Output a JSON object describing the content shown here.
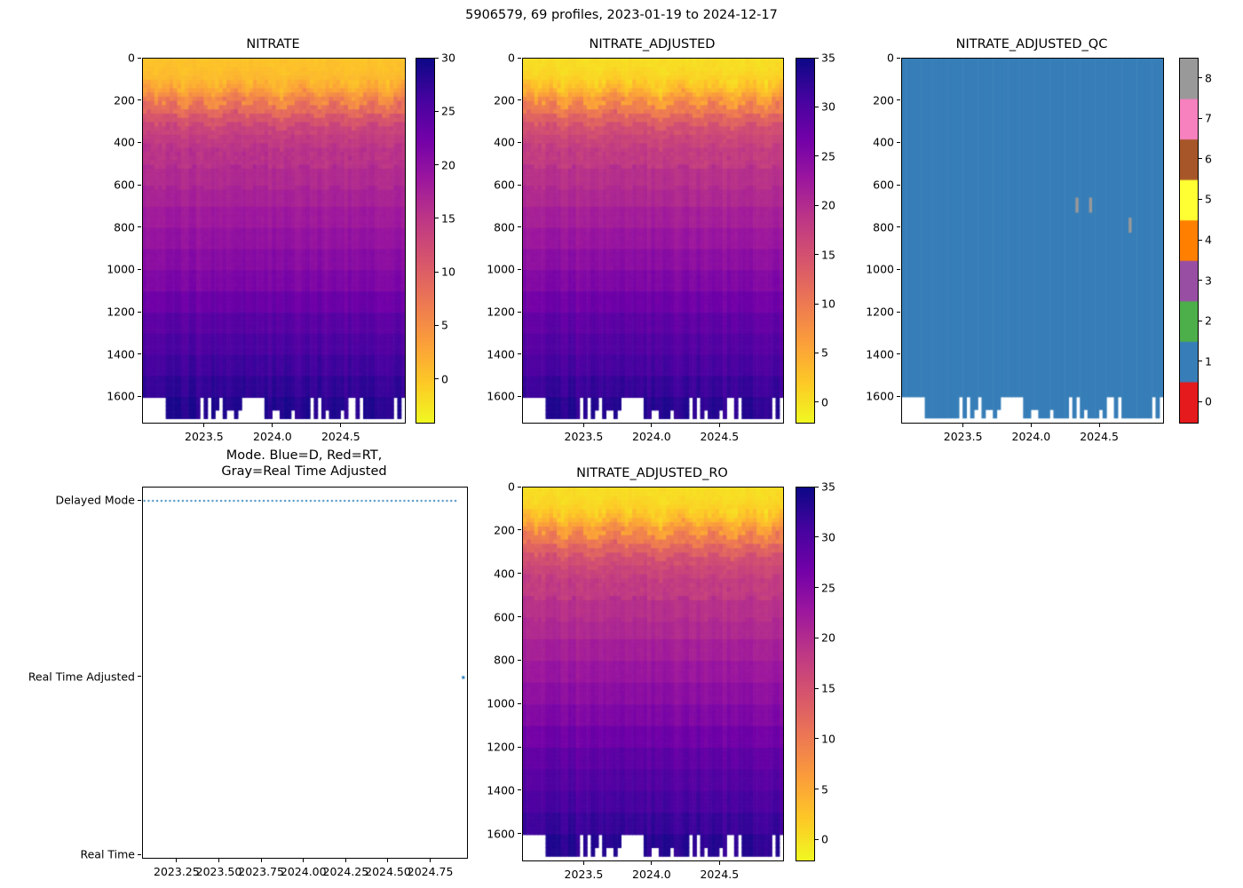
{
  "figure": {
    "suptitle": "5906579, 69 profiles, 2023-01-19 to 2024-12-17",
    "background": "#ffffff",
    "text_color": "#000000"
  },
  "colormap": {
    "name": "plasma_reversed",
    "stops": [
      [
        0.0,
        "#f0f921"
      ],
      [
        0.11,
        "#fdca26"
      ],
      [
        0.22,
        "#fb9f3a"
      ],
      [
        0.33,
        "#ed7953"
      ],
      [
        0.44,
        "#d8576b"
      ],
      [
        0.56,
        "#bd3786"
      ],
      [
        0.67,
        "#9c179e"
      ],
      [
        0.78,
        "#7201a8"
      ],
      [
        0.89,
        "#46039f"
      ],
      [
        1.0,
        "#0d0887"
      ]
    ]
  },
  "profiles": {
    "count": 69,
    "t_start": 2023.05,
    "t_end": 2024.955,
    "deep_gap_top_depth": 1600,
    "deep_gap_indices": [
      0,
      1,
      2,
      3,
      4,
      5,
      15,
      17,
      20,
      26,
      27,
      28,
      29,
      30,
      31,
      44,
      46,
      54,
      55,
      57,
      66,
      68
    ],
    "mld": [
      150,
      140,
      160,
      175,
      155,
      165,
      150,
      145,
      160,
      180,
      200,
      190,
      170,
      155,
      150,
      160,
      175,
      190,
      210,
      195,
      180,
      165,
      150,
      140,
      135,
      150,
      165,
      180,
      170,
      160,
      150,
      145,
      155,
      170,
      185,
      200,
      215,
      200,
      185,
      170,
      160,
      150,
      145,
      155,
      165,
      180,
      195,
      185,
      170,
      160,
      150,
      155,
      165,
      175,
      190,
      205,
      195,
      180,
      165,
      155,
      150,
      160,
      170,
      180,
      190,
      175,
      160,
      150,
      145
    ]
  },
  "chart_data": [
    {
      "id": "nitrate",
      "type": "heatmap",
      "title": "NITRATE",
      "xlim": [
        2023.046,
        2024.962
      ],
      "ylim": [
        0,
        1720
      ],
      "x_tick_values": [
        2023.5,
        2024.0,
        2024.5
      ],
      "x_tick_labels": [
        "2023.5",
        "2024.0",
        "2024.5"
      ],
      "y_tick_values": [
        0,
        200,
        400,
        600,
        800,
        1000,
        1200,
        1400,
        1600
      ],
      "vmin": -4,
      "vmax": 30,
      "colorbar_ticks": [
        0,
        5,
        10,
        15,
        20,
        25,
        30
      ],
      "profile_depths": [
        0,
        40,
        80,
        120,
        160,
        220,
        300,
        400,
        500,
        600,
        800,
        1000,
        1100,
        1200,
        1300,
        1400,
        1600,
        1720
      ],
      "profile_values": [
        0.5,
        0.8,
        1.5,
        3,
        6,
        10,
        13.5,
        15.5,
        16.5,
        17.5,
        19.5,
        21.5,
        23,
        24.5,
        25.5,
        26.5,
        28.5,
        29.5
      ]
    },
    {
      "id": "nitrate_adjusted",
      "type": "heatmap",
      "title": "NITRATE_ADJUSTED",
      "xlim": [
        2023.046,
        2024.962
      ],
      "ylim": [
        0,
        1720
      ],
      "x_tick_values": [
        2023.5,
        2024.0,
        2024.5
      ],
      "x_tick_labels": [
        "2023.5",
        "2024.0",
        "2024.5"
      ],
      "y_tick_values": [
        0,
        200,
        400,
        600,
        800,
        1000,
        1200,
        1400,
        1600
      ],
      "vmin": -2,
      "vmax": 35,
      "colorbar_ticks": [
        0,
        5,
        10,
        15,
        20,
        25,
        30,
        35
      ],
      "profile_depths": [
        0,
        40,
        80,
        120,
        160,
        220,
        300,
        400,
        500,
        600,
        800,
        1000,
        1100,
        1200,
        1300,
        1400,
        1600,
        1720
      ],
      "profile_values": [
        0.5,
        0.9,
        1.8,
        3.5,
        7,
        11.5,
        15.5,
        18,
        19.5,
        20.5,
        23,
        25.5,
        27,
        28.5,
        29.5,
        30.5,
        33,
        34.5
      ]
    },
    {
      "id": "nitrate_adjusted_qc",
      "type": "qc_heatmap",
      "title": "NITRATE_ADJUSTED_QC",
      "xlim": [
        2023.046,
        2024.962
      ],
      "ylim": [
        0,
        1720
      ],
      "x_tick_values": [
        2023.5,
        2024.0,
        2024.5
      ],
      "x_tick_labels": [
        "2023.5",
        "2024.0",
        "2024.5"
      ],
      "y_tick_values": [
        0,
        200,
        400,
        600,
        800,
        1000,
        1200,
        1400,
        1600
      ],
      "fill_value": 1,
      "qc_values": [
        0,
        1,
        2,
        3,
        4,
        5,
        6,
        7,
        8
      ],
      "qc_colors": [
        "#e41a1c",
        "#377eb8",
        "#4daf4a",
        "#984ea3",
        "#ff7f00",
        "#ffff33",
        "#a65628",
        "#f781bf",
        "#999999"
      ],
      "colorbar_ticks": [
        0,
        1,
        2,
        3,
        4,
        5,
        6,
        7,
        8
      ],
      "marks": [
        {
          "t": 2024.33,
          "depth": 690,
          "value": 8
        },
        {
          "t": 2024.43,
          "depth": 690,
          "value": 8
        },
        {
          "t": 2024.72,
          "depth": 785,
          "value": 8
        }
      ]
    },
    {
      "id": "mode",
      "type": "category_line",
      "title_lines": [
        "Mode. Blue=D, Red=RT,",
        "Gray=Real Time Adjusted"
      ],
      "categories": [
        "Delayed Mode",
        "Real Time Adjusted",
        "Real Time"
      ],
      "xlim": [
        2023.046,
        2024.962
      ],
      "x_tick_values": [
        2023.25,
        2023.5,
        2023.75,
        2024.0,
        2024.25,
        2024.5,
        2024.75
      ],
      "x_tick_labels": [
        "2023.25",
        "2023.50",
        "2023.75",
        "2024.00",
        "2024.25",
        "2024.50",
        "2024.75"
      ],
      "line": {
        "color": "#1f77b4",
        "style": "dotted",
        "category_index": 0,
        "t_start": 2023.05,
        "t_end": 2024.91
      },
      "point": {
        "color": "#1f77b4",
        "category_index": 1,
        "t": 2024.94
      }
    },
    {
      "id": "nitrate_adjusted_ro",
      "type": "heatmap",
      "title": "NITRATE_ADJUSTED_RO",
      "xlim": [
        2023.046,
        2024.962
      ],
      "ylim": [
        0,
        1720
      ],
      "x_tick_values": [
        2023.5,
        2024.0,
        2024.5
      ],
      "x_tick_labels": [
        "2023.5",
        "2024.0",
        "2024.5"
      ],
      "y_tick_values": [
        0,
        200,
        400,
        600,
        800,
        1000,
        1200,
        1400,
        1600
      ],
      "vmin": -2,
      "vmax": 35,
      "colorbar_ticks": [
        0,
        5,
        10,
        15,
        20,
        25,
        30,
        35
      ],
      "profile_depths": [
        0,
        40,
        80,
        120,
        160,
        220,
        300,
        400,
        500,
        600,
        800,
        1000,
        1100,
        1200,
        1300,
        1400,
        1600,
        1720
      ],
      "profile_values": [
        0.5,
        0.9,
        1.8,
        3.5,
        7,
        11.5,
        15.5,
        18,
        19.5,
        20.5,
        23,
        25.5,
        27,
        28.5,
        29.5,
        30.5,
        33,
        34.5
      ]
    }
  ]
}
